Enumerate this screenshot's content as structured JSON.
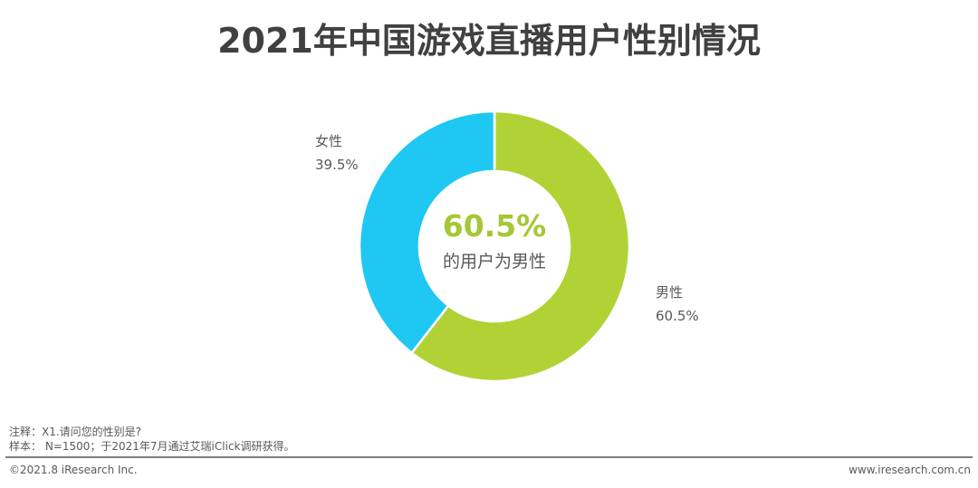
{
  "title": "2021年中国游戏直播用户性别情况",
  "chart_data": {
    "type": "pie",
    "donut": true,
    "title": "2021年中国游戏直播用户性别情况",
    "slices": [
      {
        "label": "男性",
        "value": 60.5,
        "display": "60.5%",
        "color": "#b0d235"
      },
      {
        "label": "女性",
        "value": 39.5,
        "display": "39.5%",
        "color": "#1ec8f2"
      }
    ],
    "center_value": "60.5%",
    "center_text": "的用户为男性"
  },
  "notes": {
    "note1": "注释：X1.请问您的性别是?",
    "note2": "样本： N=1500；于2021年7月通过艾瑞iClick调研获得。"
  },
  "footer": {
    "copyright": "©2021.8 iResearch Inc.",
    "website": "www.iresearch.com.cn"
  }
}
